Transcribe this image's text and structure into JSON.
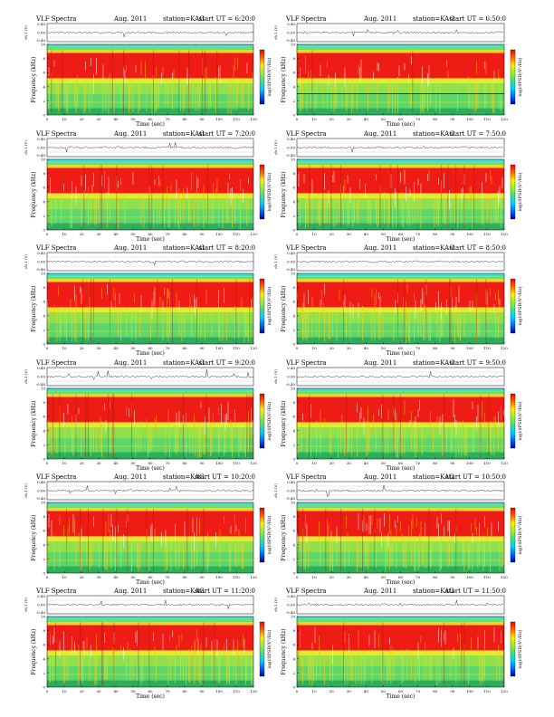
{
  "page": {
    "background": "#ffffff"
  },
  "common": {
    "label": "VLF Spectra",
    "date": "Aug. 2011",
    "station": "station=KAG",
    "ch_label": "ch.1 (V)",
    "ch_ticks": [
      "0.40",
      "0.00",
      "-0.40"
    ],
    "freq_label": "Frequency (kHz)",
    "freq_ticks": [
      "0",
      "2",
      "4",
      "6",
      "8",
      "10"
    ],
    "time_label": "Time (sec)",
    "time_ticks": [
      "0",
      "10",
      "20",
      "30",
      "40",
      "50",
      "60",
      "70",
      "80",
      "90",
      "100",
      "110",
      "120"
    ],
    "colorbar_label": "log10PSD(V²/Hz)"
  },
  "chart_data": [
    {
      "type": "heatmap",
      "title": "start UT = 6:20:0",
      "xlabel": "Time (sec)",
      "ylabel": "Frequency (kHz)",
      "xlim": [
        0,
        120
      ],
      "ylim": [
        0,
        10
      ]
    },
    {
      "type": "heatmap",
      "title": "start UT = 6:50:0",
      "xlabel": "Time (sec)",
      "ylabel": "Frequency (kHz)",
      "xlim": [
        0,
        120
      ],
      "ylim": [
        0,
        10
      ]
    },
    {
      "type": "heatmap",
      "title": "start UT = 7:20:0",
      "xlabel": "Time (sec)",
      "ylabel": "Frequency (kHz)",
      "xlim": [
        0,
        120
      ],
      "ylim": [
        0,
        10
      ]
    },
    {
      "type": "heatmap",
      "title": "start UT = 7:50:0",
      "xlabel": "Time (sec)",
      "ylabel": "Frequency (kHz)",
      "xlim": [
        0,
        120
      ],
      "ylim": [
        0,
        10
      ]
    },
    {
      "type": "heatmap",
      "title": "start UT = 8:20:0",
      "xlabel": "Time (sec)",
      "ylabel": "Frequency (kHz)",
      "xlim": [
        0,
        120
      ],
      "ylim": [
        0,
        10
      ]
    },
    {
      "type": "heatmap",
      "title": "start UT = 8:50:0",
      "xlabel": "Time (sec)",
      "ylabel": "Frequency (kHz)",
      "xlim": [
        0,
        120
      ],
      "ylim": [
        0,
        10
      ]
    },
    {
      "type": "heatmap",
      "title": "start UT = 9:20:0",
      "xlabel": "Time (sec)",
      "ylabel": "Frequency (kHz)",
      "xlim": [
        0,
        120
      ],
      "ylim": [
        0,
        10
      ]
    },
    {
      "type": "heatmap",
      "title": "start UT = 9:50:0",
      "xlabel": "Time (sec)",
      "ylabel": "Frequency (kHz)",
      "xlim": [
        0,
        120
      ],
      "ylim": [
        0,
        10
      ]
    },
    {
      "type": "heatmap",
      "title": "start UT = 10:20:0",
      "xlabel": "Time (sec)",
      "ylabel": "Frequency (kHz)",
      "xlim": [
        0,
        120
      ],
      "ylim": [
        0,
        10
      ]
    },
    {
      "type": "heatmap",
      "title": "start UT = 10:50:0",
      "xlabel": "Time (sec)",
      "ylabel": "Frequency (kHz)",
      "xlim": [
        0,
        120
      ],
      "ylim": [
        0,
        10
      ]
    },
    {
      "type": "heatmap",
      "title": "start UT = 11:20:0",
      "xlabel": "Time (sec)",
      "ylabel": "Frequency (kHz)",
      "xlim": [
        0,
        120
      ],
      "ylim": [
        0,
        10
      ]
    },
    {
      "type": "heatmap",
      "title": "start UT = 11:50:0",
      "xlabel": "Time (sec)",
      "ylabel": "Frequency (kHz)",
      "xlim": [
        0,
        120
      ],
      "ylim": [
        0,
        10
      ]
    }
  ],
  "colormap": [
    "#0000aa",
    "#0066ff",
    "#00ccff",
    "#44dd88",
    "#99ee33",
    "#ffee00",
    "#ff6600",
    "#ee0000"
  ]
}
